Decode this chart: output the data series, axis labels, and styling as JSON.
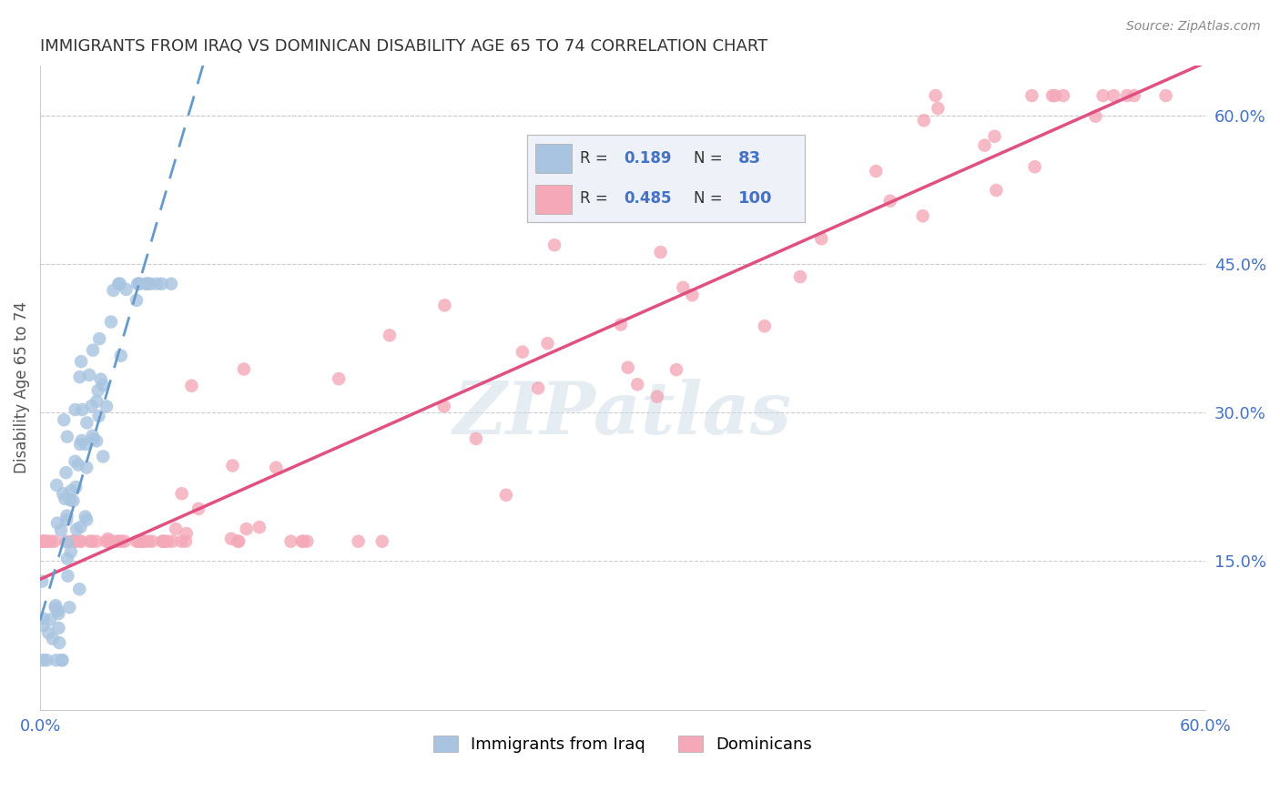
{
  "title": "IMMIGRANTS FROM IRAQ VS DOMINICAN DISABILITY AGE 65 TO 74 CORRELATION CHART",
  "source": "Source: ZipAtlas.com",
  "ylabel": "Disability Age 65 to 74",
  "xlim": [
    0.0,
    0.6
  ],
  "ylim": [
    0.0,
    0.65
  ],
  "xtick_positions": [
    0.0,
    0.1,
    0.2,
    0.3,
    0.4,
    0.5,
    0.6
  ],
  "xtick_labels": [
    "0.0%",
    "",
    "",
    "",
    "",
    "",
    "60.0%"
  ],
  "ytick_labels_right": [
    "15.0%",
    "30.0%",
    "45.0%",
    "60.0%"
  ],
  "yticks_right": [
    0.15,
    0.3,
    0.45,
    0.6
  ],
  "iraq_R": 0.189,
  "iraq_N": 83,
  "dominican_R": 0.485,
  "dominican_N": 100,
  "iraq_color": "#a8c4e0",
  "dominican_color": "#f4a8b8",
  "iraq_line_color": "#6699cc",
  "dominican_line_color": "#e05080",
  "watermark": "ZIPatlas",
  "legend_box_color": "#eef2f8",
  "grid_color": "#cccccc",
  "background_color": "#ffffff",
  "title_color": "#333333",
  "axis_label_color": "#555555",
  "right_tick_color": "#4472c4",
  "bottom_tick_color": "#4472c4",
  "legend_text_color": "#333333",
  "legend_value_color": "#4472c4"
}
